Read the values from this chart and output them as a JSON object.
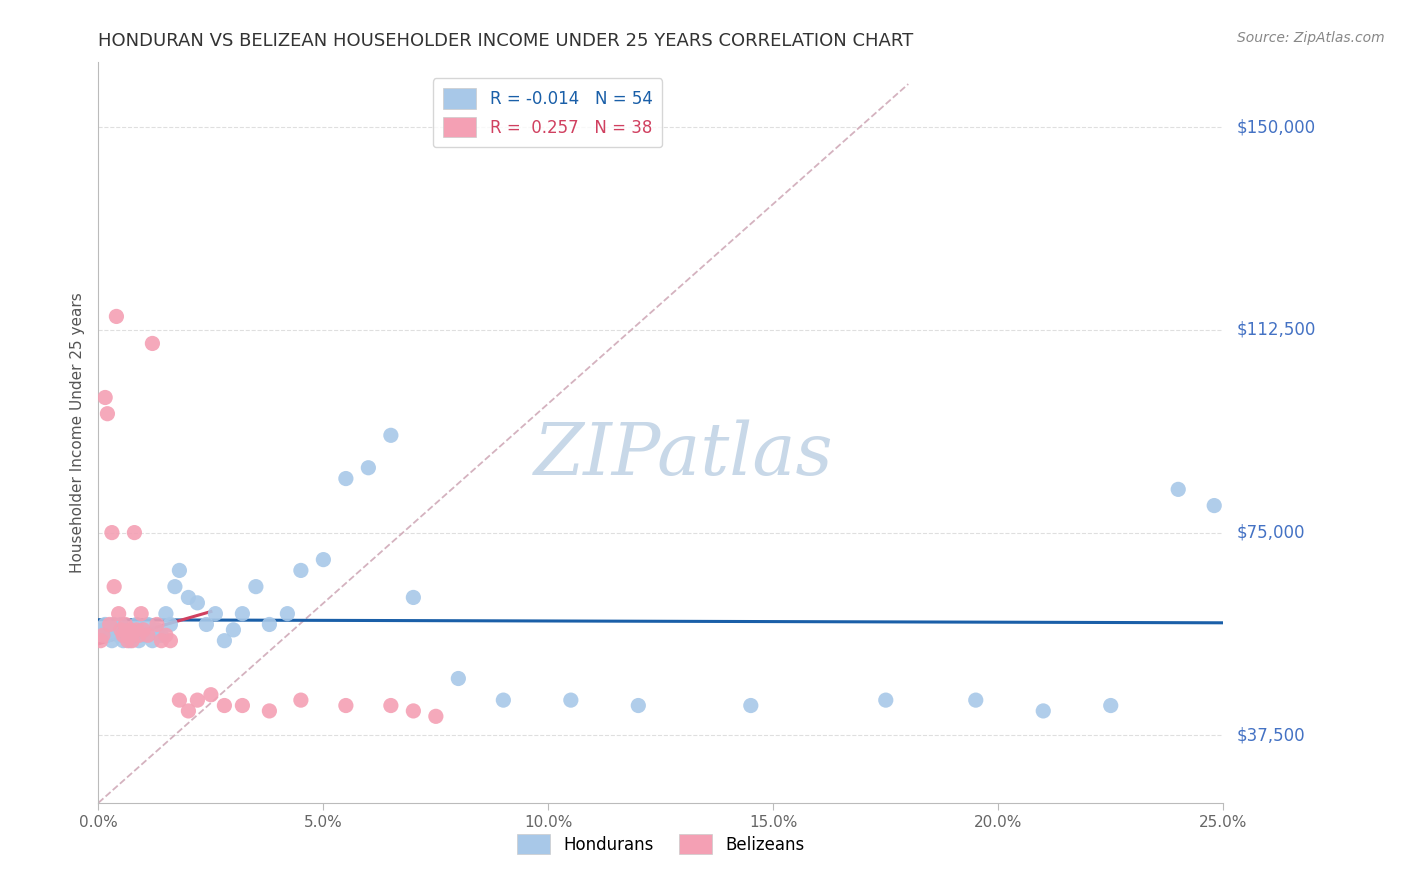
{
  "title": "HONDURAN VS BELIZEAN HOUSEHOLDER INCOME UNDER 25 YEARS CORRELATION CHART",
  "source": "Source: ZipAtlas.com",
  "ylabel": "Householder Income Under 25 years",
  "ytick_vals": [
    37500,
    75000,
    112500,
    150000
  ],
  "ytick_labels": [
    "$37,500",
    "$75,000",
    "$112,500",
    "$150,000"
  ],
  "xtick_vals": [
    0,
    5,
    10,
    15,
    20,
    25
  ],
  "xtick_labels": [
    "0.0%",
    "5.0%",
    "10.0%",
    "15.0%",
    "20.0%",
    "25.0%"
  ],
  "xlim": [
    0,
    25
  ],
  "ylim": [
    25000,
    162000
  ],
  "honduran_R": -0.014,
  "honduran_N": 54,
  "belizean_R": 0.257,
  "belizean_N": 38,
  "honduran_color": "#a8c8e8",
  "belizean_color": "#f4a0b4",
  "honduran_line_color": "#1a5fa8",
  "belizean_line_color": "#d04060",
  "diag_line_color": "#d0aab8",
  "grid_color": "#d8d8d8",
  "background_color": "#ffffff",
  "watermark": "ZIPatlas",
  "watermark_color": "#c8d8e8",
  "title_color": "#333333",
  "source_color": "#888888",
  "tick_color": "#666666",
  "ylabel_color": "#555555",
  "right_label_color": "#4472c4",
  "legend_text_color_1": "#1a5fa8",
  "legend_text_color_2": "#d04060",
  "hon_x": [
    0.1,
    0.15,
    0.2,
    0.25,
    0.3,
    0.35,
    0.4,
    0.45,
    0.5,
    0.55,
    0.6,
    0.65,
    0.7,
    0.75,
    0.8,
    0.85,
    0.9,
    0.95,
    1.0,
    1.1,
    1.2,
    1.3,
    1.4,
    1.5,
    1.6,
    1.7,
    1.8,
    2.0,
    2.2,
    2.4,
    2.6,
    2.8,
    3.0,
    3.2,
    3.5,
    3.8,
    4.2,
    4.5,
    5.0,
    5.5,
    6.0,
    6.5,
    7.0,
    8.0,
    9.0,
    10.5,
    12.0,
    14.5,
    17.5,
    19.5,
    21.0,
    22.5,
    24.0,
    24.8
  ],
  "hon_y": [
    57000,
    58000,
    56000,
    57000,
    55000,
    58000,
    57000,
    56000,
    58000,
    55000,
    57000,
    56000,
    55000,
    57000,
    56000,
    58000,
    55000,
    57000,
    56000,
    58000,
    55000,
    57000,
    56000,
    60000,
    58000,
    65000,
    68000,
    63000,
    62000,
    58000,
    60000,
    55000,
    57000,
    60000,
    65000,
    58000,
    60000,
    68000,
    70000,
    85000,
    87000,
    93000,
    63000,
    48000,
    44000,
    44000,
    43000,
    43000,
    44000,
    44000,
    42000,
    43000,
    83000,
    80000
  ],
  "bel_x": [
    0.05,
    0.1,
    0.15,
    0.2,
    0.25,
    0.3,
    0.35,
    0.4,
    0.45,
    0.5,
    0.55,
    0.6,
    0.65,
    0.7,
    0.75,
    0.8,
    0.85,
    0.9,
    0.95,
    1.0,
    1.1,
    1.2,
    1.3,
    1.4,
    1.5,
    1.6,
    1.8,
    2.0,
    2.2,
    2.5,
    2.8,
    3.2,
    3.8,
    4.5,
    5.5,
    6.5,
    7.0,
    7.5
  ],
  "bel_y": [
    55000,
    56000,
    100000,
    97000,
    58000,
    75000,
    65000,
    115000,
    60000,
    57000,
    56000,
    58000,
    55000,
    57000,
    55000,
    75000,
    57000,
    56000,
    60000,
    57000,
    56000,
    110000,
    58000,
    55000,
    56000,
    55000,
    44000,
    42000,
    44000,
    45000,
    43000,
    43000,
    42000,
    44000,
    43000,
    43000,
    42000,
    41000
  ]
}
